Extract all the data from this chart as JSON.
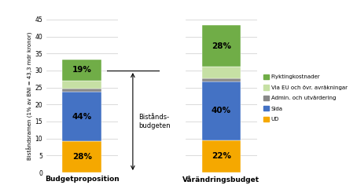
{
  "categories": [
    "Budgetproposition",
    "Vårändringsbudget"
  ],
  "segments": {
    "UD": {
      "values": [
        9.24,
        9.526
      ],
      "color": "#F5A800",
      "pct_labels": [
        "28%",
        "22%"
      ]
    },
    "Sida": {
      "values": [
        14.52,
        17.32
      ],
      "color": "#4472C4",
      "pct_labels": [
        "44%",
        "40%"
      ]
    },
    "Admin. och utvärdering": {
      "values": [
        1.0,
        0.866
      ],
      "color": "#888888",
      "pct_labels": [
        "",
        ""
      ]
    },
    "Via EU och övr. avräkningar": {
      "values": [
        2.24,
        3.464
      ],
      "color": "#C6E0A4",
      "pct_labels": [
        "",
        ""
      ]
    },
    "Flyktingkostnader": {
      "values": [
        6.27,
        12.124
      ],
      "color": "#70AD47",
      "pct_labels": [
        "19%",
        "28%"
      ]
    }
  },
  "segment_order": [
    "UD",
    "Sida",
    "Admin. och utvärdering",
    "Via EU och övr. avräkningar",
    "Flyktingkostnader"
  ],
  "legend_labels": [
    "Flyktingkostnader",
    "Via EU och övr. avräkningar",
    "Admin. och utvärdering",
    "Sida",
    "UD"
  ],
  "legend_colors": [
    "#70AD47",
    "#C6E0A4",
    "#888888",
    "#4472C4",
    "#F5A800"
  ],
  "ylabel": "Biståndsramen (1% av BNI = 43,3 mdr kronor)",
  "ylim": [
    0,
    45
  ],
  "yticks": [
    0,
    5,
    10,
    15,
    20,
    25,
    30,
    35,
    40,
    45
  ],
  "annotation_text": "Bistånds-\nbudgeten",
  "bg_color": "#FFFFFF"
}
